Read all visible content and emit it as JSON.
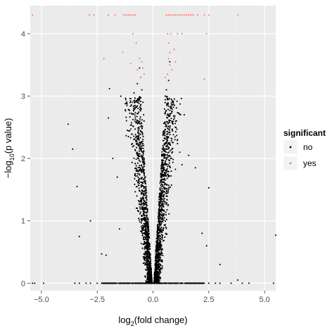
{
  "chart_data": {
    "type": "scatter",
    "title": "",
    "xlabel_parts": {
      "prefix": "log",
      "sub": "2",
      "suffix": "(fold change)"
    },
    "ylabel_parts": {
      "prefix": "−log",
      "sub": "10",
      "suffix": "(p value)"
    },
    "xlim": [
      -5.5,
      5.5
    ],
    "ylim": [
      -0.12,
      4.45
    ],
    "x_ticks": [
      -5.0,
      -2.5,
      0.0,
      2.5,
      5.0
    ],
    "x_tick_labels": [
      "−5.0",
      "−2.5",
      "0.0",
      "2.5",
      "5.0"
    ],
    "y_ticks": [
      0,
      1,
      2,
      3,
      4
    ],
    "y_tick_labels": [
      "0",
      "1",
      "2",
      "3",
      "4"
    ],
    "grid": true,
    "legend": {
      "title": "significant",
      "placement": "right",
      "entries": [
        {
          "label": "no",
          "color": "#000000"
        },
        {
          "label": "yes",
          "color": "#f8766d"
        }
      ]
    },
    "series": [
      {
        "name": "no",
        "color": "#000000",
        "points": [
          [
            -5.4,
            0
          ],
          [
            -5.3,
            0
          ],
          [
            -4.9,
            0
          ],
          [
            -3.5,
            0
          ],
          [
            -3.3,
            0
          ],
          [
            -3.0,
            0
          ],
          [
            -2.8,
            0
          ],
          [
            -2.5,
            0
          ],
          [
            -2.3,
            0
          ],
          [
            -2.0,
            0
          ],
          [
            -1.8,
            0
          ],
          [
            1.5,
            0
          ],
          [
            1.8,
            0
          ],
          [
            2.0,
            0
          ],
          [
            2.2,
            0
          ],
          [
            2.5,
            0
          ],
          [
            2.8,
            0
          ],
          [
            3.0,
            0
          ],
          [
            3.5,
            0
          ],
          [
            4.0,
            0
          ],
          [
            4.3,
            0
          ],
          [
            5.4,
            0
          ],
          [
            -3.8,
            2.55
          ],
          [
            -3.6,
            2.15
          ],
          [
            -3.4,
            1.55
          ],
          [
            -2.8,
            1.0
          ],
          [
            -3.3,
            0.75
          ],
          [
            -2.3,
            0.47
          ],
          [
            -2.1,
            0.45
          ],
          [
            -1.5,
            0.87
          ],
          [
            -2.0,
            2.65
          ],
          [
            -1.95,
            3.12
          ],
          [
            -1.8,
            2.0
          ],
          [
            -1.6,
            1.7
          ],
          [
            -1.1,
            2.35
          ],
          [
            1.4,
            2.7
          ],
          [
            1.6,
            2.05
          ],
          [
            1.9,
            1.85
          ],
          [
            2.5,
            1.53
          ],
          [
            2.2,
            0.8
          ],
          [
            2.4,
            0.6
          ],
          [
            3.0,
            0.3
          ],
          [
            3.8,
            0.05
          ],
          [
            5.5,
            0.77
          ],
          [
            -0.85,
            3.05
          ],
          [
            -0.7,
            3.2
          ],
          [
            -0.6,
            3.45
          ],
          [
            -0.55,
            3.3
          ],
          [
            -0.5,
            3.1
          ],
          [
            -0.45,
            2.9
          ],
          [
            -0.42,
            2.7
          ],
          [
            -0.4,
            2.6
          ],
          [
            0.55,
            3.0
          ],
          [
            0.6,
            3.1
          ],
          [
            0.7,
            3.25
          ],
          [
            0.75,
            3.55
          ],
          [
            0.62,
            2.85
          ],
          [
            0.9,
            2.9
          ],
          [
            1.0,
            2.5
          ],
          [
            1.1,
            2.3
          ],
          [
            1.2,
            2.1
          ],
          [
            1.3,
            1.9
          ]
        ]
      },
      {
        "name": "yes",
        "color": "#f8766d",
        "points": [
          [
            -5.4,
            4.3
          ],
          [
            -2.85,
            4.3
          ],
          [
            -2.65,
            4.3
          ],
          [
            -2.0,
            4.3
          ],
          [
            -1.7,
            4.3
          ],
          [
            -1.3,
            4.3
          ],
          [
            -1.2,
            4.3
          ],
          [
            -1.1,
            4.3
          ],
          [
            -1.0,
            4.3
          ],
          [
            -0.9,
            4.3
          ],
          [
            -0.8,
            4.3
          ],
          [
            -2.2,
            3.6
          ],
          [
            -1.35,
            3.7
          ],
          [
            -1.0,
            3.52
          ],
          [
            -0.7,
            3.42
          ],
          [
            -0.55,
            3.3
          ],
          [
            -0.5,
            3.55
          ],
          [
            -0.45,
            3.45
          ],
          [
            -0.9,
            4.0
          ],
          [
            -0.75,
            3.85
          ],
          [
            -0.6,
            3.6
          ],
          [
            -0.4,
            3.35
          ],
          [
            0.6,
            4.3
          ],
          [
            0.7,
            4.3
          ],
          [
            0.8,
            4.3
          ],
          [
            0.9,
            4.3
          ],
          [
            1.0,
            4.3
          ],
          [
            1.1,
            4.3
          ],
          [
            1.2,
            4.3
          ],
          [
            1.3,
            4.3
          ],
          [
            1.4,
            4.3
          ],
          [
            1.5,
            4.3
          ],
          [
            1.6,
            4.3
          ],
          [
            1.7,
            4.3
          ],
          [
            1.8,
            4.3
          ],
          [
            2.0,
            4.3
          ],
          [
            2.3,
            4.3
          ],
          [
            2.5,
            4.3
          ],
          [
            3.8,
            4.3
          ],
          [
            0.65,
            4.0
          ],
          [
            0.8,
            4.0
          ],
          [
            1.1,
            4.0
          ],
          [
            1.3,
            4.0
          ],
          [
            2.4,
            4.0
          ],
          [
            0.7,
            3.85
          ],
          [
            0.75,
            3.7
          ],
          [
            0.95,
            3.75
          ],
          [
            0.7,
            3.6
          ],
          [
            1.0,
            3.55
          ],
          [
            0.75,
            3.5
          ],
          [
            0.85,
            3.42
          ],
          [
            0.65,
            3.35
          ],
          [
            0.55,
            3.3
          ],
          [
            2.3,
            3.27
          ]
        ]
      }
    ]
  }
}
